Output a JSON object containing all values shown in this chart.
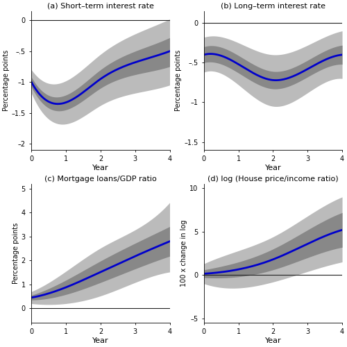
{
  "panels": [
    {
      "title": "(a) Short–term interest rate",
      "ylabel": "Percentage points",
      "xlabel": "Year",
      "xlim": [
        0,
        4
      ],
      "ylim": [
        -2.1,
        0.15
      ],
      "yticks": [
        0,
        -0.5,
        -1.0,
        -1.5,
        -2.0
      ],
      "ytick_labels": [
        "0",
        "–.5",
        "–1",
        "–1.5",
        "–2"
      ],
      "xticks": [
        0,
        1,
        2,
        3,
        4
      ],
      "hline": 0,
      "x": [
        0,
        1,
        2,
        3,
        4
      ],
      "y_center": [
        -1.0,
        -1.33,
        -0.95,
        -0.68,
        -0.5
      ],
      "y_inner_lo": [
        -1.08,
        -1.45,
        -1.1,
        -0.88,
        -0.75
      ],
      "y_inner_hi": [
        -0.92,
        -1.21,
        -0.8,
        -0.5,
        -0.28
      ],
      "y_outer_lo": [
        -1.18,
        -1.68,
        -1.38,
        -1.18,
        -1.05
      ],
      "y_outer_hi": [
        -0.8,
        -0.98,
        -0.55,
        -0.22,
        0.02
      ]
    },
    {
      "title": "(b) Long–term interest rate",
      "ylabel": "Percentage points",
      "xlabel": "Year",
      "xlim": [
        0,
        4
      ],
      "ylim": [
        -1.6,
        0.15
      ],
      "yticks": [
        0,
        -0.5,
        -1.0,
        -1.5
      ],
      "ytick_labels": [
        "0",
        "–.5",
        "–1",
        "–1.5"
      ],
      "xticks": [
        0,
        1,
        2,
        3,
        4
      ],
      "hline": 0,
      "x": [
        0,
        1,
        2,
        3,
        4
      ],
      "y_center": [
        -0.4,
        -0.52,
        -0.72,
        -0.58,
        -0.4
      ],
      "y_inner_lo": [
        -0.5,
        -0.63,
        -0.83,
        -0.68,
        -0.52
      ],
      "y_inner_hi": [
        -0.3,
        -0.41,
        -0.61,
        -0.47,
        -0.28
      ],
      "y_outer_lo": [
        -0.62,
        -0.78,
        -1.05,
        -0.88,
        -0.7
      ],
      "y_outer_hi": [
        -0.18,
        -0.25,
        -0.4,
        -0.28,
        -0.1
      ]
    },
    {
      "title": "(c) Mortgage loans/GDP ratio",
      "ylabel": "Percentage points",
      "xlabel": "Year",
      "xlim": [
        0,
        4
      ],
      "ylim": [
        -0.6,
        5.2
      ],
      "yticks": [
        0,
        1,
        2,
        3,
        4,
        5
      ],
      "ytick_labels": [
        "0",
        "1",
        "2",
        "3",
        "4",
        "5"
      ],
      "xticks": [
        0,
        1,
        2,
        3,
        4
      ],
      "hline": 0,
      "x": [
        0,
        1,
        2,
        3,
        4
      ],
      "y_center": [
        0.45,
        0.88,
        1.52,
        2.18,
        2.8
      ],
      "y_inner_lo": [
        0.35,
        0.58,
        1.08,
        1.65,
        2.18
      ],
      "y_inner_hi": [
        0.55,
        1.18,
        1.98,
        2.72,
        3.42
      ],
      "y_outer_lo": [
        0.2,
        0.2,
        0.52,
        1.08,
        1.52
      ],
      "y_outer_hi": [
        0.7,
        1.55,
        2.52,
        3.28,
        4.42
      ]
    },
    {
      "title": "(d) log (House price/income ratio)",
      "ylabel": "100 x change in log",
      "xlabel": "Year",
      "xlim": [
        0,
        4
      ],
      "ylim": [
        -5.5,
        10.5
      ],
      "yticks": [
        -5,
        0,
        5,
        10
      ],
      "ytick_labels": [
        "–5",
        "0",
        "5",
        "10"
      ],
      "xticks": [
        0,
        1,
        2,
        3,
        4
      ],
      "hline": 0,
      "x": [
        0,
        1,
        2,
        3,
        4
      ],
      "y_center": [
        0.15,
        0.65,
        1.8,
        3.6,
        5.2
      ],
      "y_inner_lo": [
        -0.3,
        -0.2,
        0.6,
        2.0,
        3.2
      ],
      "y_inner_hi": [
        0.6,
        1.5,
        3.0,
        5.2,
        7.2
      ],
      "y_outer_lo": [
        -1.0,
        -1.5,
        -0.8,
        0.4,
        1.5
      ],
      "y_outer_hi": [
        1.3,
        2.8,
        4.4,
        6.8,
        9.0
      ]
    }
  ],
  "line_color": "#0000cc",
  "line_width": 2.0,
  "inner_band_color": "#888888",
  "outer_band_color": "#bbbbbb",
  "inner_band_alpha": 1.0,
  "outer_band_alpha": 1.0,
  "hline_color": "#222222",
  "hline_lw": 0.8,
  "fig_width": 5.0,
  "fig_height": 5.0,
  "dpi": 100
}
